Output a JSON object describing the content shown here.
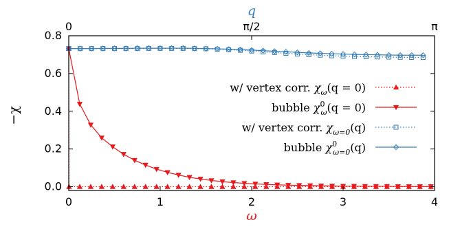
{
  "chart_data": {
    "type": "line",
    "xlabel_bottom": "ω",
    "xlabel_top": "q",
    "ylabel": "−χ",
    "xlim_bottom": [
      0,
      4
    ],
    "xlim_top": [
      0,
      3.14159
    ],
    "ylim": [
      -0.02,
      0.8
    ],
    "bottom_ticks": [
      "0",
      "1",
      "2",
      "3",
      "4"
    ],
    "top_ticks": [
      "0",
      "π/2",
      "π"
    ],
    "y_ticks": [
      "0.0",
      "0.2",
      "0.4",
      "0.6",
      "0.8"
    ],
    "legend_position": "center-right",
    "colors": {
      "red": "#e41a1c",
      "blue": "#377eb8",
      "bottom_axis_label": "#e41a1c",
      "top_axis_label": "#377eb8"
    },
    "series": [
      {
        "name": "w/ vertex corr. χ_ω(q = 0)",
        "axis": "bottom",
        "color": "#e41a1c",
        "style": "dotted",
        "marker": "triangle-up",
        "x": [
          0,
          0.003,
          0.12,
          0.24,
          0.36,
          0.48,
          0.6,
          0.72,
          0.84,
          0.96,
          1.08,
          1.2,
          1.32,
          1.44,
          1.56,
          1.68,
          1.8,
          1.92,
          2.04,
          2.16,
          2.28,
          2.4,
          2.52,
          2.64,
          2.76,
          2.88,
          3.0,
          3.12,
          3.24,
          3.36,
          3.48,
          3.6,
          3.72,
          3.84,
          3.96
        ],
        "y": [
          0.732,
          0.0,
          0.0,
          0.0,
          0.0,
          0.0,
          0.0,
          0.0,
          0.0,
          0.0,
          0.0,
          0.0,
          0.0,
          0.0,
          0.0,
          0.0,
          0.0,
          0.0,
          0.0,
          0.0,
          0.0,
          0.0,
          0.0,
          0.0,
          0.0,
          0.0,
          0.0,
          0.0,
          0.0,
          0.0,
          0.0,
          0.0,
          0.0,
          0.0,
          0.0
        ]
      },
      {
        "name": "bubble χ⁰_ω(q = 0)",
        "axis": "bottom",
        "color": "#e41a1c",
        "style": "solid",
        "marker": "triangle-down",
        "x": [
          0,
          0.12,
          0.24,
          0.36,
          0.48,
          0.6,
          0.72,
          0.84,
          0.96,
          1.08,
          1.2,
          1.32,
          1.44,
          1.56,
          1.68,
          1.8,
          1.92,
          2.04,
          2.16,
          2.28,
          2.4,
          2.52,
          2.64,
          2.76,
          2.88,
          3.0,
          3.12,
          3.24,
          3.36,
          3.48,
          3.6,
          3.72,
          3.84,
          3.96
        ],
        "y": [
          0.732,
          0.438,
          0.328,
          0.259,
          0.212,
          0.172,
          0.14,
          0.115,
          0.093,
          0.076,
          0.062,
          0.05,
          0.041,
          0.033,
          0.027,
          0.022,
          0.018,
          0.015,
          0.012,
          0.01,
          0.008,
          0.007,
          0.006,
          0.005,
          0.004,
          0.003,
          0.003,
          0.002,
          0.002,
          0.002,
          0.001,
          0.001,
          0.001,
          0.001
        ]
      },
      {
        "name": "w/ vertex corr. χ_{ω=0}(q)",
        "axis": "top",
        "color": "#377eb8",
        "style": "dotted",
        "marker": "square",
        "x": [
          0,
          0.098,
          0.196,
          0.294,
          0.393,
          0.491,
          0.589,
          0.687,
          0.785,
          0.884,
          0.982,
          1.08,
          1.178,
          1.276,
          1.374,
          1.473,
          1.571,
          1.669,
          1.767,
          1.865,
          1.963,
          2.062,
          2.16,
          2.258,
          2.356,
          2.454,
          2.553,
          2.651,
          2.749,
          2.847,
          2.945,
          3.043
        ],
        "y": [
          0.732,
          0.732,
          0.732,
          0.732,
          0.732,
          0.732,
          0.732,
          0.733,
          0.733,
          0.733,
          0.733,
          0.732,
          0.731,
          0.729,
          0.726,
          0.723,
          0.719,
          0.715,
          0.711,
          0.707,
          0.703,
          0.7,
          0.697,
          0.694,
          0.692,
          0.69,
          0.689,
          0.688,
          0.687,
          0.686,
          0.685,
          0.685
        ]
      },
      {
        "name": "bubble χ⁰_{ω=0}(q)",
        "axis": "top",
        "color": "#377eb8",
        "style": "solid",
        "marker": "diamond",
        "x": [
          0,
          0.098,
          0.196,
          0.294,
          0.393,
          0.491,
          0.589,
          0.687,
          0.785,
          0.884,
          0.982,
          1.08,
          1.178,
          1.276,
          1.374,
          1.473,
          1.571,
          1.669,
          1.767,
          1.865,
          1.963,
          2.062,
          2.16,
          2.258,
          2.356,
          2.454,
          2.553,
          2.651,
          2.749,
          2.847,
          2.945,
          3.043
        ],
        "y": [
          0.732,
          0.732,
          0.732,
          0.733,
          0.733,
          0.733,
          0.734,
          0.734,
          0.734,
          0.734,
          0.734,
          0.733,
          0.732,
          0.731,
          0.729,
          0.727,
          0.724,
          0.721,
          0.718,
          0.715,
          0.712,
          0.709,
          0.707,
          0.705,
          0.703,
          0.701,
          0.7,
          0.699,
          0.698,
          0.697,
          0.697,
          0.697
        ]
      }
    ],
    "legend": [
      {
        "prefix": "w/ vertex corr. ",
        "symbol": "χ",
        "sup": "",
        "sub": "ω",
        "args": "(q = 0)"
      },
      {
        "prefix": "bubble ",
        "symbol": "χ",
        "sup": "0",
        "sub": "ω",
        "args": "(q = 0)"
      },
      {
        "prefix": "w/ vertex corr. ",
        "symbol": "χ",
        "sup": "",
        "sub": "ω=0",
        "args": "(q)"
      },
      {
        "prefix": "bubble ",
        "symbol": "χ",
        "sup": "0",
        "sub": "ω=0",
        "args": "(q)"
      }
    ]
  }
}
